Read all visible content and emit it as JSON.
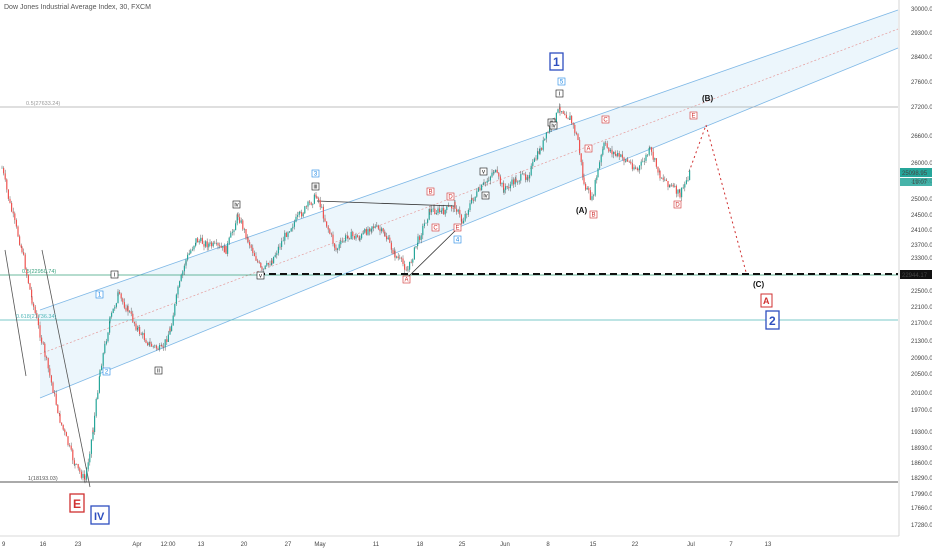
{
  "chart_data": {
    "type": "candlestick",
    "title": "Dow Jones Industrial Average Index, 30, FXCM",
    "y_ticks": [
      17280,
      17660,
      17990,
      18290,
      18600,
      18930,
      19300,
      19700,
      20100,
      20500,
      20900,
      21300,
      21700,
      22100,
      22500,
      22900,
      23300,
      23700,
      24100,
      24500,
      25000,
      25500,
      26000,
      26600,
      27200,
      27600,
      28400,
      29300,
      30000,
      30800
    ],
    "x_ticks": [
      "9",
      "16",
      "23",
      "Apr",
      "12:00",
      "13",
      "20",
      "27",
      "May",
      "11",
      "18",
      "25",
      "Jun",
      "8",
      "15",
      "22",
      "Jul",
      "7",
      "13"
    ],
    "price_tags": [
      {
        "label": "25098.95",
        "color": "#26a69a"
      },
      {
        "label": "19:07",
        "color": "#26a69a"
      },
      {
        "label": "22944.17",
        "color": "#111111"
      }
    ],
    "fib_levels": [
      {
        "label": "0.5(27633.24)",
        "value": 27633,
        "color": "#aaaaaa"
      },
      {
        "label": "0.5(22950.74)",
        "value": 22950,
        "color": "#3aa17e"
      },
      {
        "label": "0.618(21736.34)",
        "value": 21736,
        "color": "#4fb6b8"
      },
      {
        "label": "1(18193.03)",
        "value": 18193,
        "color": "#555555"
      }
    ],
    "support_level": 22944,
    "wave_labels": {
      "big": [
        "1",
        "2",
        "A",
        "E",
        "IV"
      ],
      "letters": [
        "(A)",
        "(B)",
        "(C)"
      ],
      "small": [
        "1",
        "2",
        "3",
        "4",
        "5",
        "i",
        "ii",
        "iii",
        "iv",
        "v",
        "a",
        "b",
        "c",
        "d",
        "e",
        "A",
        "B",
        "C",
        "D",
        "E"
      ]
    },
    "grid": false,
    "legend": "none"
  }
}
